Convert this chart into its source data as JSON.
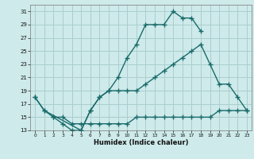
{
  "xlabel": "Humidex (Indice chaleur)",
  "background_color": "#ceeaea",
  "grid_color": "#aacece",
  "line_color": "#1a6b6b",
  "xlim": [
    -0.5,
    23.5
  ],
  "ylim": [
    13,
    32
  ],
  "xticks": [
    0,
    1,
    2,
    3,
    4,
    5,
    6,
    7,
    8,
    9,
    10,
    11,
    12,
    13,
    14,
    15,
    16,
    17,
    18,
    19,
    20,
    21,
    22,
    23
  ],
  "yticks": [
    13,
    15,
    17,
    19,
    21,
    23,
    25,
    27,
    29,
    31
  ],
  "series1_x": [
    0,
    1,
    2,
    3,
    4,
    5,
    6,
    7,
    8,
    9,
    10,
    11,
    12,
    13,
    14,
    15,
    16,
    17,
    18
  ],
  "series1_y": [
    18,
    16,
    15,
    14,
    13,
    13,
    16,
    18,
    19,
    21,
    24,
    26,
    29,
    29,
    29,
    31,
    30,
    30,
    28
  ],
  "series2_x": [
    2,
    3,
    4,
    5,
    6,
    7,
    8,
    9,
    10,
    11,
    12,
    13,
    14,
    15,
    16,
    17,
    18,
    19,
    20,
    21,
    22,
    23
  ],
  "series2_y": [
    15,
    15,
    14,
    14,
    14,
    14,
    14,
    14,
    14,
    15,
    15,
    15,
    15,
    15,
    15,
    15,
    15,
    15,
    16,
    16,
    16,
    16
  ],
  "series3_x": [
    0,
    1,
    5,
    6,
    7,
    8,
    9,
    10,
    11,
    12,
    13,
    14,
    15,
    16,
    17,
    18,
    19,
    20,
    21,
    22,
    23
  ],
  "series3_y": [
    18,
    16,
    13,
    16,
    18,
    19,
    19,
    19,
    19,
    20,
    21,
    22,
    23,
    24,
    25,
    26,
    23,
    20,
    20,
    18,
    16
  ]
}
